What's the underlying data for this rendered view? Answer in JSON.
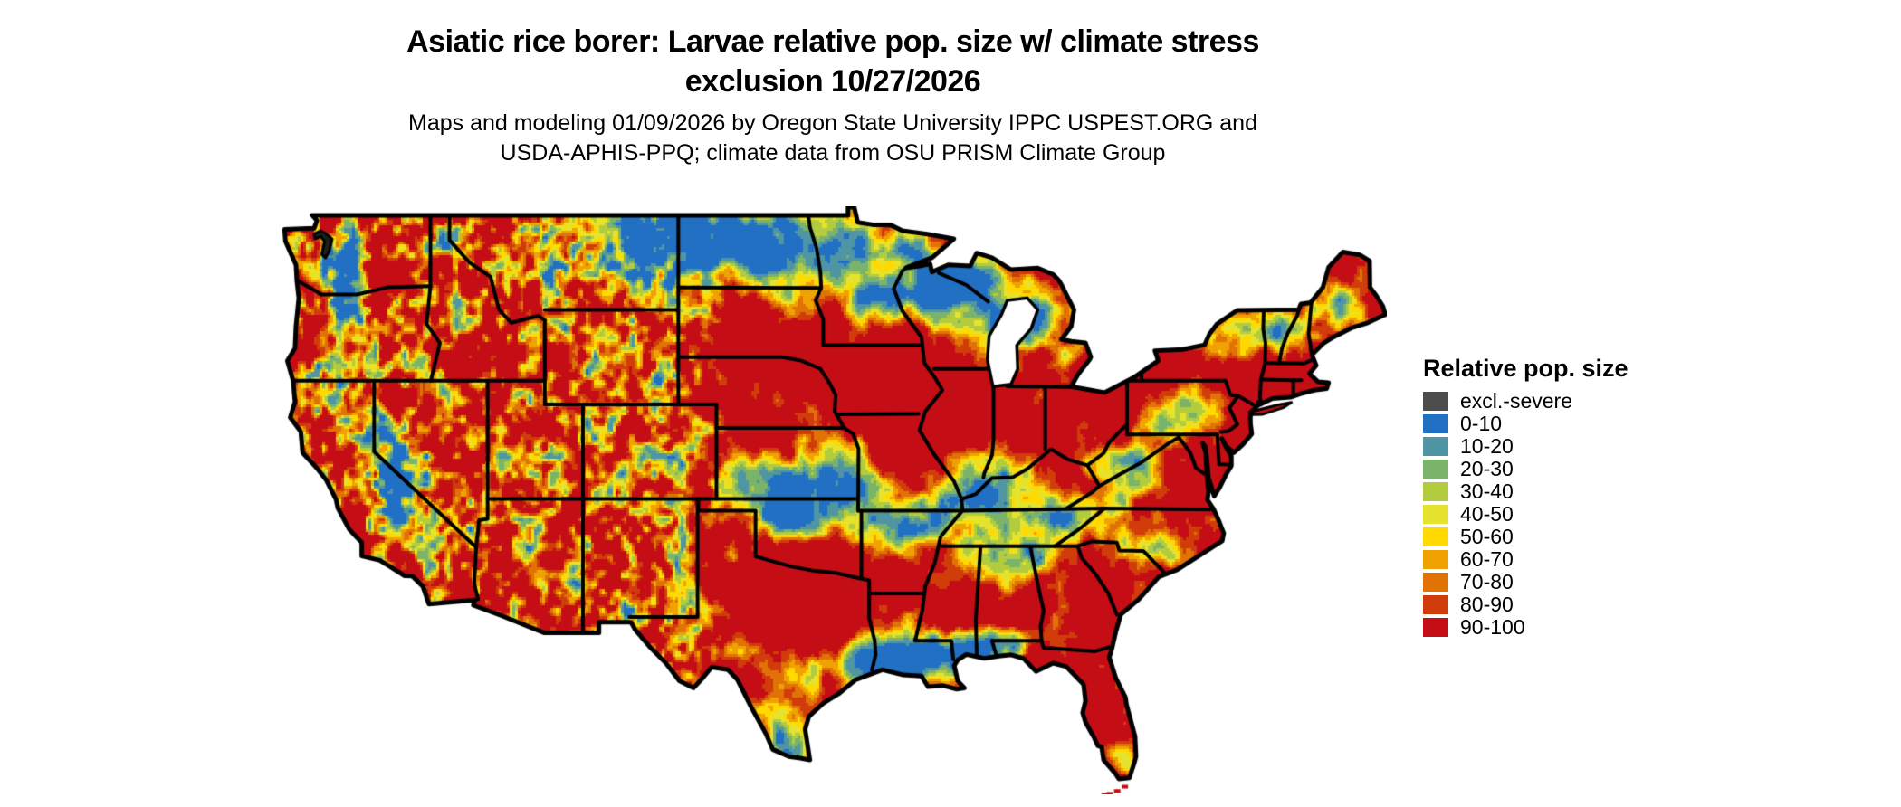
{
  "title": {
    "line1": "Asiatic rice borer: Larvae relative pop. size w/ climate stress",
    "line2": "exclusion 10/27/2026"
  },
  "subtitle": {
    "line1": "Maps and modeling 01/09/2026 by Oregon State University IPPC USPEST.ORG and",
    "line2": "USDA-APHIS-PPQ; climate data from OSU PRISM Climate Group"
  },
  "legend": {
    "title": "Relative pop. size",
    "entries": [
      {
        "label": "excl.-severe",
        "color": "#4d4d4d"
      },
      {
        "label": "0-10",
        "color": "#2170c4"
      },
      {
        "label": "10-20",
        "color": "#4f95a3"
      },
      {
        "label": "20-30",
        "color": "#7ab36a"
      },
      {
        "label": "30-40",
        "color": "#b3cc3e"
      },
      {
        "label": "40-50",
        "color": "#e6e32e"
      },
      {
        "label": "50-60",
        "color": "#ffd900"
      },
      {
        "label": "60-70",
        "color": "#f0a202"
      },
      {
        "label": "70-80",
        "color": "#e07206"
      },
      {
        "label": "80-90",
        "color": "#d03c0a"
      },
      {
        "label": "90-100",
        "color": "#c40d15"
      }
    ]
  },
  "map": {
    "outline_color": "#000000",
    "water_color": "#ffffff",
    "excluded_area_color": "#1d1d1d"
  }
}
